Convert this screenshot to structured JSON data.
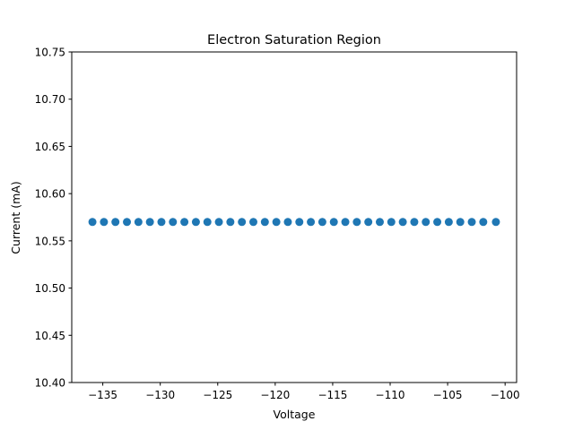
{
  "chart_data": {
    "type": "scatter",
    "title": "Electron Saturation Region",
    "xlabel": "Voltage",
    "ylabel": "Current (mA)",
    "xlim": [
      -137.7,
      -99.0
    ],
    "ylim": [
      10.4,
      10.75
    ],
    "grid": false,
    "marker_color": "#1f77b4",
    "xticks": [
      {
        "value": -135,
        "label": "−135"
      },
      {
        "value": -130,
        "label": "−130"
      },
      {
        "value": -125,
        "label": "−125"
      },
      {
        "value": -120,
        "label": "−120"
      },
      {
        "value": -115,
        "label": "−115"
      },
      {
        "value": -110,
        "label": "−110"
      },
      {
        "value": -105,
        "label": "−105"
      },
      {
        "value": -100,
        "label": "−100"
      }
    ],
    "yticks": [
      {
        "value": 10.4,
        "label": "10.40"
      },
      {
        "value": 10.45,
        "label": "10.45"
      },
      {
        "value": 10.5,
        "label": "10.50"
      },
      {
        "value": 10.55,
        "label": "10.55"
      },
      {
        "value": 10.6,
        "label": "10.60"
      },
      {
        "value": 10.65,
        "label": "10.65"
      },
      {
        "value": 10.7,
        "label": "10.70"
      },
      {
        "value": 10.75,
        "label": "10.75"
      }
    ],
    "series": [
      {
        "x": [
          -135.9,
          -134.9,
          -133.9,
          -132.9,
          -131.9,
          -130.9,
          -129.9,
          -128.9,
          -127.9,
          -126.9,
          -125.9,
          -124.9,
          -123.9,
          -122.9,
          -121.9,
          -120.9,
          -119.9,
          -118.9,
          -117.9,
          -116.9,
          -115.9,
          -114.9,
          -113.9,
          -112.9,
          -111.9,
          -110.9,
          -109.9,
          -108.9,
          -107.9,
          -106.9,
          -105.9,
          -104.9,
          -103.9,
          -102.9,
          -101.9,
          -100.8
        ],
        "y": [
          10.57,
          10.57,
          10.57,
          10.57,
          10.57,
          10.57,
          10.57,
          10.57,
          10.57,
          10.57,
          10.57,
          10.57,
          10.57,
          10.57,
          10.57,
          10.57,
          10.57,
          10.57,
          10.57,
          10.57,
          10.57,
          10.57,
          10.57,
          10.57,
          10.57,
          10.57,
          10.57,
          10.57,
          10.57,
          10.57,
          10.57,
          10.57,
          10.57,
          10.57,
          10.57,
          10.57
        ]
      }
    ]
  }
}
